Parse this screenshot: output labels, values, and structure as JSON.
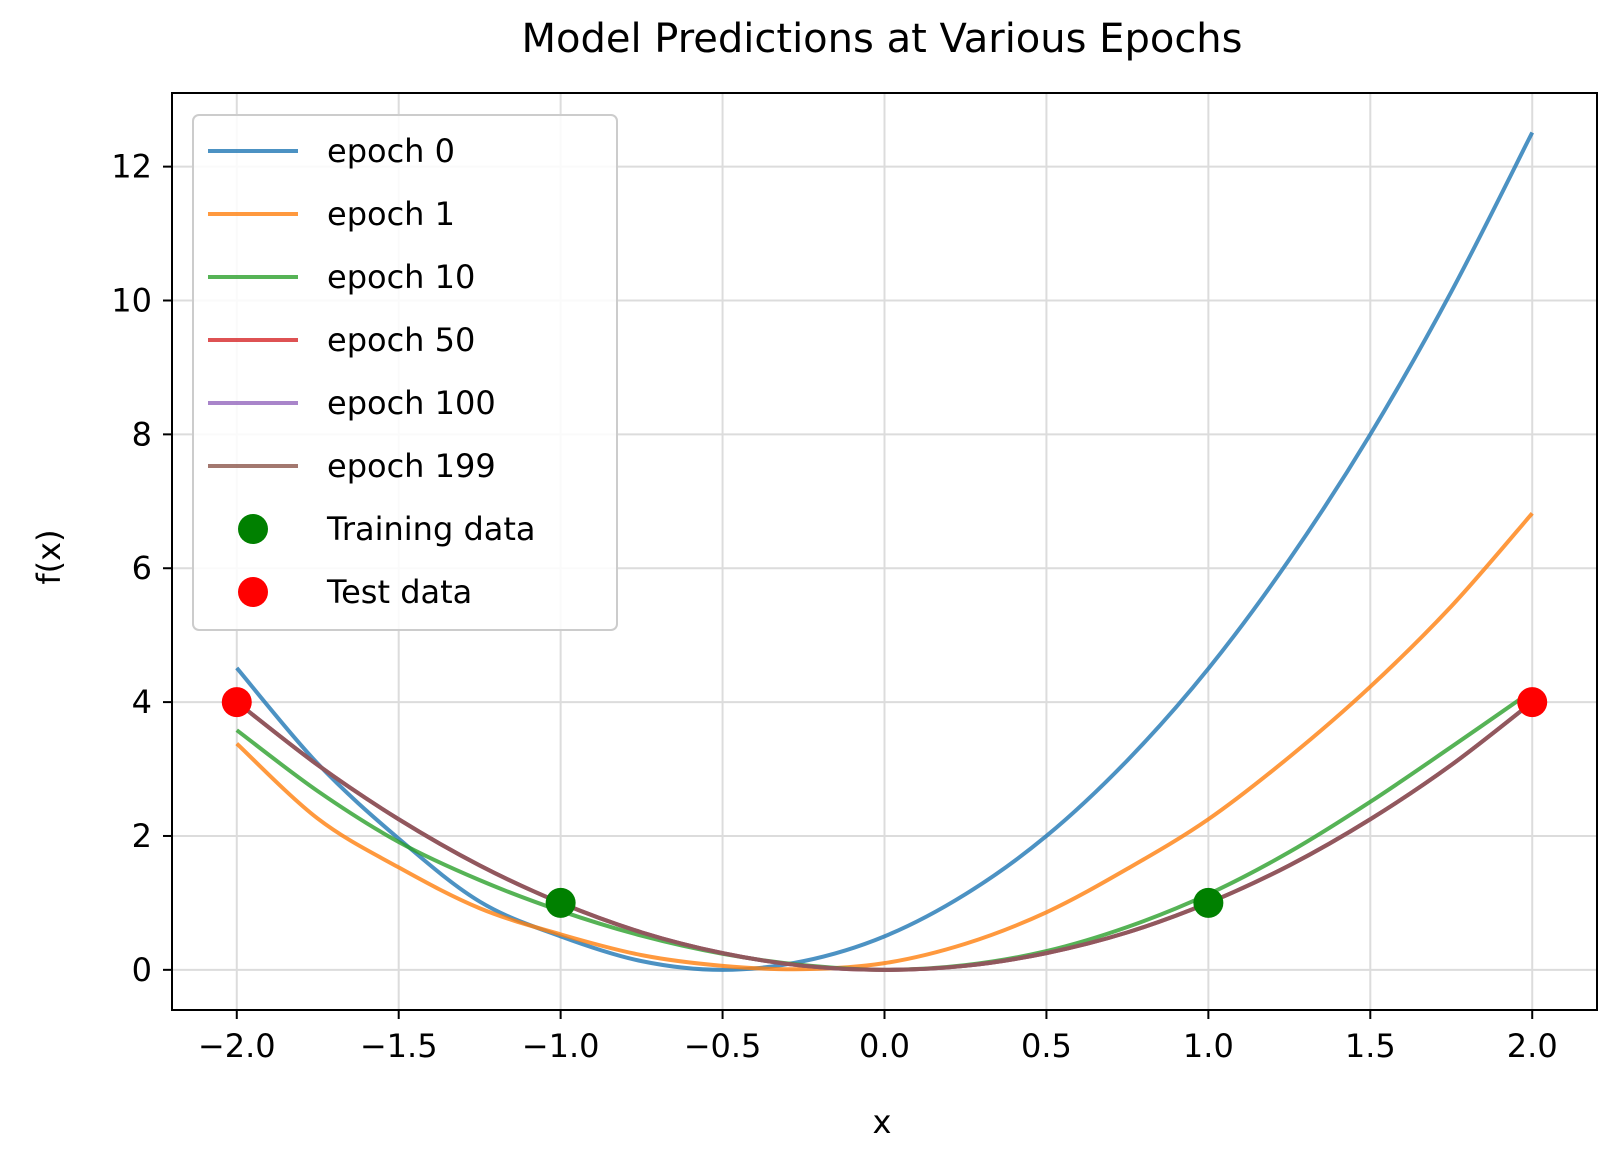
{
  "chart_data": {
    "type": "line",
    "title": "Model Predictions at Various Epochs",
    "xlabel": "x",
    "ylabel": "f(x)",
    "xlim": [
      -2.2,
      2.2
    ],
    "ylim": [
      -0.6,
      13.1
    ],
    "xticks": [
      -2.0,
      -1.5,
      -1.0,
      -0.5,
      0.0,
      0.5,
      1.0,
      1.5,
      2.0
    ],
    "xtick_labels": [
      "−2.0",
      "−1.5",
      "−1.0",
      "−0.5",
      "0.0",
      "0.5",
      "1.0",
      "1.5",
      "2.0"
    ],
    "yticks": [
      0,
      2,
      4,
      6,
      8,
      10,
      12
    ],
    "ytick_labels": [
      "0",
      "2",
      "4",
      "6",
      "8",
      "10",
      "12"
    ],
    "grid": true,
    "legend_position": "top-left",
    "x": [
      -2.0,
      -1.75,
      -1.5,
      -1.25,
      -1.0,
      -0.75,
      -0.5,
      -0.25,
      0.0,
      0.25,
      0.5,
      0.75,
      1.0,
      1.25,
      1.5,
      1.75,
      2.0
    ],
    "series": [
      {
        "name": "epoch 0",
        "color": "#1f77b4",
        "values": [
          4.51,
          3.08,
          1.96,
          1.02,
          0.5,
          0.13,
          0.0,
          0.13,
          0.5,
          1.13,
          2.0,
          3.13,
          4.5,
          6.13,
          8.0,
          10.13,
          12.51
        ]
      },
      {
        "name": "epoch 1",
        "color": "#ff7f0e",
        "values": [
          3.38,
          2.26,
          1.53,
          0.92,
          0.53,
          0.22,
          0.06,
          0.01,
          0.1,
          0.39,
          0.86,
          1.51,
          2.25,
          3.18,
          4.23,
          5.43,
          6.82
        ]
      },
      {
        "name": "epoch 10",
        "color": "#2ca02c",
        "values": [
          3.58,
          2.67,
          1.91,
          1.34,
          0.88,
          0.51,
          0.24,
          0.07,
          0.0,
          0.07,
          0.28,
          0.64,
          1.13,
          1.76,
          2.51,
          3.33,
          4.17
        ]
      },
      {
        "name": "epoch 50",
        "color": "#d62728",
        "values": [
          4.0,
          3.06,
          2.25,
          1.56,
          1.0,
          0.56,
          0.25,
          0.06,
          0.0,
          0.06,
          0.25,
          0.56,
          1.0,
          1.56,
          2.25,
          3.06,
          4.0
        ]
      },
      {
        "name": "epoch 100",
        "color": "#9467bd",
        "values": [
          4.0,
          3.06,
          2.25,
          1.56,
          1.0,
          0.56,
          0.25,
          0.06,
          0.0,
          0.06,
          0.25,
          0.56,
          1.0,
          1.56,
          2.25,
          3.06,
          4.0
        ]
      },
      {
        "name": "epoch 199",
        "color": "#8c564b",
        "values": [
          4.0,
          3.06,
          2.25,
          1.56,
          1.0,
          0.56,
          0.25,
          0.06,
          0.0,
          0.06,
          0.25,
          0.56,
          1.0,
          1.56,
          2.25,
          3.06,
          4.0
        ]
      }
    ],
    "scatter": [
      {
        "name": "Training data",
        "color": "#008000",
        "x": [
          -1.0,
          1.0
        ],
        "y": [
          1.0,
          1.0
        ]
      },
      {
        "name": "Test data",
        "color": "#ff0000",
        "x": [
          -2.0,
          2.0
        ],
        "y": [
          4.0,
          4.0
        ]
      }
    ]
  }
}
